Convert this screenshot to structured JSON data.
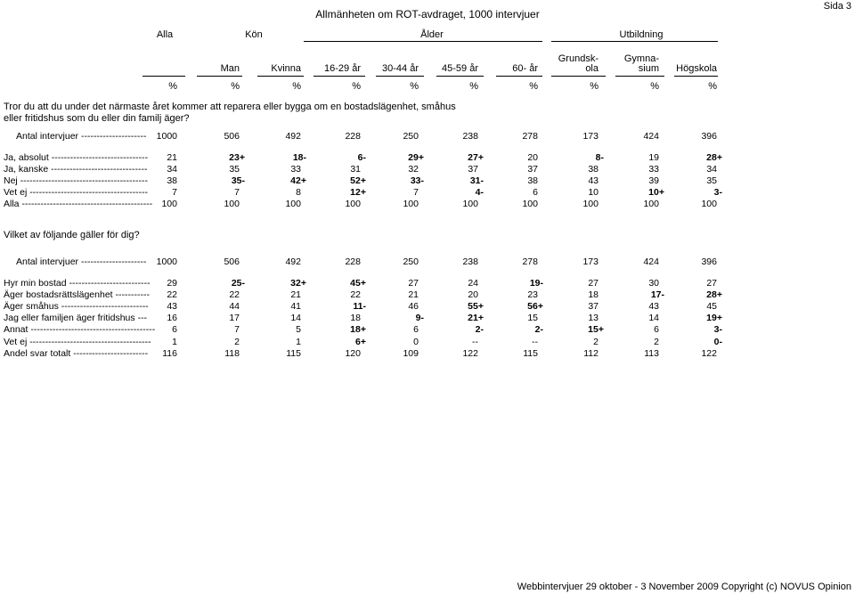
{
  "page": {
    "title": "Allmänheten om ROT-avdraget, 1000 intervjuer",
    "page_label": "Sida 3",
    "footer": "Webbintervjuer 29 oktober - 3 November 2009 Copyright (c) NOVUS Opinion"
  },
  "groups": [
    "Alla",
    "Kön",
    "Ålder",
    "Utbildning"
  ],
  "columns": [
    {
      "line1": "",
      "line2": "Alla"
    },
    {
      "line1": "",
      "line2": "Man"
    },
    {
      "line1": "",
      "line2": "Kvinna"
    },
    {
      "line1": "",
      "line2": "16-29 år"
    },
    {
      "line1": "",
      "line2": "30-44 år"
    },
    {
      "line1": "",
      "line2": "45-59 år"
    },
    {
      "line1": "",
      "line2": "60- år"
    },
    {
      "line1": "Grundsk-",
      "line2": "ola"
    },
    {
      "line1": "Gymna-",
      "line2": "sium"
    },
    {
      "line1": "",
      "line2": "Högskola"
    }
  ],
  "percent_symbol": "%",
  "table1": {
    "question": "Tror du att du under det närmaste året kommer att reparera eller bygga om en bostadslägenhet, småhus eller fritidshus som du eller din familj äger?",
    "base": {
      "label": "Antal intervjuer ---------------------",
      "values": [
        "1000",
        "506",
        "492",
        "228",
        "250",
        "238",
        "278",
        "173",
        "424",
        "396"
      ]
    },
    "rows": [
      {
        "label": "Ja, absolut -------------------------------",
        "values": [
          [
            "21",
            ""
          ],
          [
            "23",
            "+"
          ],
          [
            "18",
            "-"
          ],
          [
            "6",
            "-"
          ],
          [
            "29",
            "+"
          ],
          [
            "27",
            "+"
          ],
          [
            "20",
            ""
          ],
          [
            "8",
            "-"
          ],
          [
            "19",
            ""
          ],
          [
            "28",
            "+"
          ]
        ]
      },
      {
        "label": "Ja, kanske -------------------------------",
        "values": [
          [
            "34",
            ""
          ],
          [
            "35",
            ""
          ],
          [
            "33",
            ""
          ],
          [
            "31",
            ""
          ],
          [
            "32",
            ""
          ],
          [
            "37",
            ""
          ],
          [
            "37",
            ""
          ],
          [
            "38",
            ""
          ],
          [
            "33",
            ""
          ],
          [
            "34",
            ""
          ]
        ]
      },
      {
        "label": "Nej -----------------------------------------",
        "values": [
          [
            "38",
            ""
          ],
          [
            "35",
            "-"
          ],
          [
            "42",
            "+"
          ],
          [
            "52",
            "+"
          ],
          [
            "33",
            "-"
          ],
          [
            "31",
            "-"
          ],
          [
            "38",
            ""
          ],
          [
            "43",
            ""
          ],
          [
            "39",
            ""
          ],
          [
            "35",
            ""
          ]
        ]
      },
      {
        "label": "Vet ej --------------------------------------",
        "values": [
          [
            "7",
            ""
          ],
          [
            "7",
            ""
          ],
          [
            "8",
            ""
          ],
          [
            "12",
            "+"
          ],
          [
            "7",
            ""
          ],
          [
            "4",
            "-"
          ],
          [
            "6",
            ""
          ],
          [
            "10",
            ""
          ],
          [
            "10",
            "+"
          ],
          [
            "3",
            "-"
          ]
        ]
      },
      {
        "label": "Alla ------------------------------------------",
        "values": [
          [
            "100",
            ""
          ],
          [
            "100",
            ""
          ],
          [
            "100",
            ""
          ],
          [
            "100",
            ""
          ],
          [
            "100",
            ""
          ],
          [
            "100",
            ""
          ],
          [
            "100",
            ""
          ],
          [
            "100",
            ""
          ],
          [
            "100",
            ""
          ],
          [
            "100",
            ""
          ]
        ]
      }
    ]
  },
  "table2": {
    "question": "Vilket av följande gäller för dig?",
    "base": {
      "label": "Antal intervjuer ---------------------",
      "values": [
        "1000",
        "506",
        "492",
        "228",
        "250",
        "238",
        "278",
        "173",
        "424",
        "396"
      ]
    },
    "rows": [
      {
        "label": "Hyr min bostad --------------------------",
        "values": [
          [
            "29",
            ""
          ],
          [
            "25",
            "-"
          ],
          [
            "32",
            "+"
          ],
          [
            "45",
            "+"
          ],
          [
            "27",
            ""
          ],
          [
            "24",
            ""
          ],
          [
            "19",
            "-"
          ],
          [
            "27",
            ""
          ],
          [
            "30",
            ""
          ],
          [
            "27",
            ""
          ]
        ]
      },
      {
        "label": "Äger bostadsrättslägenhet -----------",
        "values": [
          [
            "22",
            ""
          ],
          [
            "22",
            ""
          ],
          [
            "21",
            ""
          ],
          [
            "22",
            ""
          ],
          [
            "21",
            ""
          ],
          [
            "20",
            ""
          ],
          [
            "23",
            ""
          ],
          [
            "18",
            ""
          ],
          [
            "17",
            "-"
          ],
          [
            "28",
            "+"
          ]
        ]
      },
      {
        "label": "Äger småhus ----------------------------",
        "values": [
          [
            "43",
            ""
          ],
          [
            "44",
            ""
          ],
          [
            "41",
            ""
          ],
          [
            "11",
            "-"
          ],
          [
            "46",
            ""
          ],
          [
            "55",
            "+"
          ],
          [
            "56",
            "+"
          ],
          [
            "37",
            ""
          ],
          [
            "43",
            ""
          ],
          [
            "45",
            ""
          ]
        ]
      },
      {
        "label": "Jag eller familjen äger fritidshus ---",
        "values": [
          [
            "16",
            ""
          ],
          [
            "17",
            ""
          ],
          [
            "14",
            ""
          ],
          [
            "18",
            ""
          ],
          [
            "9",
            "-"
          ],
          [
            "21",
            "+"
          ],
          [
            "15",
            ""
          ],
          [
            "13",
            ""
          ],
          [
            "14",
            ""
          ],
          [
            "19",
            "+"
          ]
        ]
      },
      {
        "label": "Annat ----------------------------------------",
        "values": [
          [
            "6",
            ""
          ],
          [
            "7",
            ""
          ],
          [
            "5",
            ""
          ],
          [
            "18",
            "+"
          ],
          [
            "6",
            ""
          ],
          [
            "2",
            "-"
          ],
          [
            "2",
            "-"
          ],
          [
            "15",
            "+"
          ],
          [
            "6",
            ""
          ],
          [
            "3",
            "-"
          ]
        ]
      },
      {
        "label": "Vet ej ---------------------------------------",
        "values": [
          [
            "1",
            ""
          ],
          [
            "2",
            ""
          ],
          [
            "1",
            ""
          ],
          [
            "6",
            "+"
          ],
          [
            "0",
            ""
          ],
          [
            "--",
            ""
          ],
          [
            "--",
            ""
          ],
          [
            "2",
            ""
          ],
          [
            "2",
            ""
          ],
          [
            "0",
            "-"
          ]
        ]
      },
      {
        "label": "Andel svar totalt ------------------------",
        "values": [
          [
            "116",
            ""
          ],
          [
            "118",
            ""
          ],
          [
            "115",
            ""
          ],
          [
            "120",
            ""
          ],
          [
            "109",
            ""
          ],
          [
            "122",
            ""
          ],
          [
            "115",
            ""
          ],
          [
            "112",
            ""
          ],
          [
            "113",
            ""
          ],
          [
            "122",
            ""
          ]
        ]
      }
    ]
  }
}
